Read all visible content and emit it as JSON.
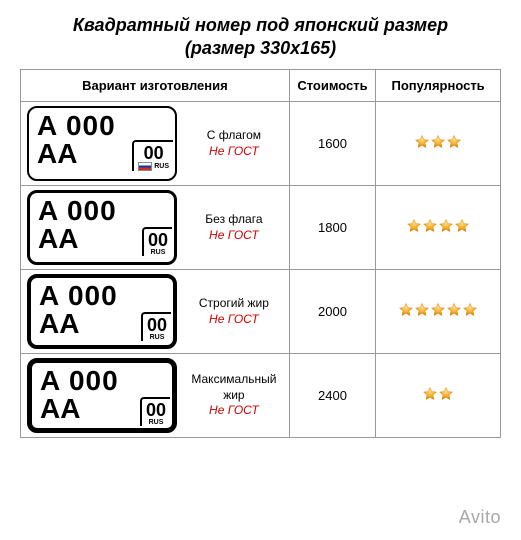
{
  "title": "Квадратный номер под японский размер",
  "subtitle": "(размер 330х165)",
  "headers": {
    "variant": "Вариант изготовления",
    "cost": "Стоимость",
    "popularity": "Популярность"
  },
  "plate": {
    "top": "A 000",
    "series": "AA",
    "region": "00",
    "rus": "RUS"
  },
  "rows": [
    {
      "name": "С флагом",
      "gost": "Не ГОСТ",
      "cost": "1600",
      "stars": 3,
      "flag": true,
      "border_class": "b1"
    },
    {
      "name": "Без флага",
      "gost": "Не ГОСТ",
      "cost": "1800",
      "stars": 4,
      "flag": false,
      "border_class": "b2"
    },
    {
      "name": "Строгий жир",
      "gost": "Не ГОСТ",
      "cost": "2000",
      "stars": 5,
      "flag": false,
      "border_class": "b3"
    },
    {
      "name": "Максимальный жир",
      "gost": "Не ГОСТ",
      "cost": "2400",
      "stars": 2,
      "flag": false,
      "border_class": "b4"
    }
  ],
  "star_colors": {
    "fill": "#f5a623",
    "stroke": "#cc7a00"
  },
  "gost_color": "#d10000",
  "watermark": "Avito"
}
